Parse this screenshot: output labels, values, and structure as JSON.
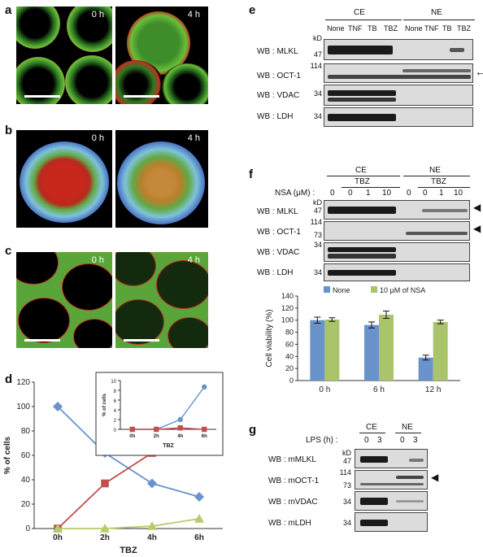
{
  "panel_labels": {
    "a": "a",
    "b": "b",
    "c": "c",
    "d": "d",
    "e": "e",
    "f": "f",
    "g": "g"
  },
  "time_labels": {
    "t0": "0 h",
    "t4": "4 h"
  },
  "panel_e": {
    "group_ce": "CE",
    "group_ne": "NE",
    "lanes": [
      "None",
      "TNF",
      "TB",
      "TBZ",
      "None",
      "TNF",
      "TB",
      "TBZ"
    ],
    "kd": "kD",
    "rows": [
      {
        "label": "WB : MLKL",
        "marker": "47"
      },
      {
        "label": "WB : OCT-1",
        "marker": "114"
      },
      {
        "label": "WB : VDAC",
        "marker": "34"
      },
      {
        "label": "WB : LDH",
        "marker": "34"
      }
    ],
    "arrow": "←"
  },
  "panel_f": {
    "group_ce": "CE",
    "group_ne": "NE",
    "tbz": "TBZ",
    "nsa_label": "NSA (μM) :",
    "lanes": [
      "0",
      "0",
      "1",
      "10",
      "0",
      "0",
      "1",
      "10"
    ],
    "kd": "kD",
    "rows": [
      {
        "label": "WB : MLKL",
        "marker": "47"
      },
      {
        "label": "WB : OCT-1",
        "marker_top": "114",
        "marker_bottom": "73"
      },
      {
        "label": "WB : VDAC",
        "marker": "34"
      },
      {
        "label": "WB : LDH",
        "marker": "34"
      }
    ],
    "arrow": "◀"
  },
  "panel_g": {
    "group_ce": "CE",
    "group_ne": "NE",
    "lps_label": "LPS (h) :",
    "lanes": [
      "0",
      "3",
      "0",
      "3"
    ],
    "kd": "kD",
    "rows": [
      {
        "label": "WB : mMLKL",
        "marker": "47"
      },
      {
        "label": "WB : mOCT-1",
        "marker_top": "114",
        "marker_bottom": "73"
      },
      {
        "label": "WB : mVDAC",
        "marker": "34"
      },
      {
        "label": "WB : mLDH",
        "marker": "34"
      }
    ],
    "arrow": "◀"
  },
  "chart_data": [
    {
      "type": "line",
      "panel": "d",
      "xlabel": "TBZ",
      "ylabel": "% of cells",
      "categories": [
        "0h",
        "2h",
        "4h",
        "6h"
      ],
      "ylim": [
        0,
        120
      ],
      "yticks": [
        0,
        20,
        40,
        60,
        80,
        100,
        120
      ],
      "colors": [
        "#6a93cc",
        "#c0504d",
        "#b5cc6a"
      ],
      "series": [
        {
          "values": [
            100,
            62,
            37,
            26
          ]
        },
        {
          "values": [
            0,
            37,
            62,
            73
          ]
        },
        {
          "values": [
            0,
            0,
            2,
            8
          ]
        }
      ],
      "inset": {
        "type": "line",
        "xlabel": "TBZ",
        "ylabel": "% of cells",
        "categories": [
          "0h",
          "2h",
          "4h",
          "6h"
        ],
        "ylim": [
          0,
          10
        ],
        "yticks": [
          0,
          2,
          4,
          6,
          8,
          10
        ],
        "colors": [
          "#6a93cc",
          "#c0504d"
        ],
        "series": [
          {
            "values": [
              0,
              0,
              2,
              8.7
            ]
          },
          {
            "values": [
              0,
              0,
              0.3,
              0
            ]
          }
        ]
      }
    },
    {
      "type": "bar",
      "panel": "f",
      "ylabel": "Cell viability (%)",
      "categories": [
        "0 h",
        "6 h",
        "12 h"
      ],
      "ylim": [
        0,
        140
      ],
      "yticks": [
        0,
        20,
        40,
        60,
        80,
        100,
        120,
        140
      ],
      "legend_position": "top",
      "series": [
        {
          "name": "None",
          "color": "#6a93cc",
          "values": [
            100,
            92,
            38
          ],
          "errors": [
            5,
            5,
            4
          ]
        },
        {
          "name": "10 μM of NSA",
          "color": "#a9c46a",
          "values": [
            101,
            109,
            97
          ],
          "errors": [
            3,
            6,
            3
          ]
        }
      ]
    }
  ]
}
